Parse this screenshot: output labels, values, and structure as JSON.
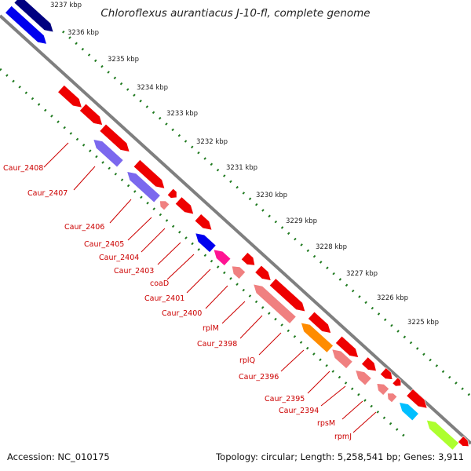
{
  "title": "Chloroflexus aurantiacus J-10-fl, complete genome",
  "accession_text": "Accession: NC_010175",
  "summary_text": "Topology: circular; Length: 5,258,541 bp; Genes: 3,911",
  "colors": {
    "backbone": "#7f7f7f",
    "tick_dots": "#1f7a1f",
    "label_text": "#cc0000",
    "gene_red": "#ee0000",
    "gene_pink": "#f08080",
    "gene_violet": "#7b68ee",
    "gene_navy": "#000080",
    "gene_blue": "#0000ee",
    "gene_magenta": "#ff1493",
    "gene_orange": "#ff8c00",
    "gene_cyan": "#00bfff",
    "gene_lime": "#adff2f"
  },
  "scale_ticks": [
    "3237 kbp",
    "3236 kbp",
    "3235 kbp",
    "3234 kbp",
    "3233 kbp",
    "3232 kbp",
    "3231 kbp",
    "3230 kbp",
    "3229 kbp",
    "3228 kbp",
    "3227 kbp",
    "3226 kbp",
    "3225 kbp"
  ],
  "gene_labels": [
    "Caur_2408",
    "Caur_2407",
    "Caur_2406",
    "Caur_2405",
    "Caur_2404",
    "Caur_2403",
    "coaD",
    "Caur_2401",
    "Caur_2400",
    "rplM",
    "Caur_2398",
    "rplQ",
    "Caur_2396",
    "Caur_2395",
    "Caur_2394",
    "rpsM",
    "rpmJ"
  ]
}
